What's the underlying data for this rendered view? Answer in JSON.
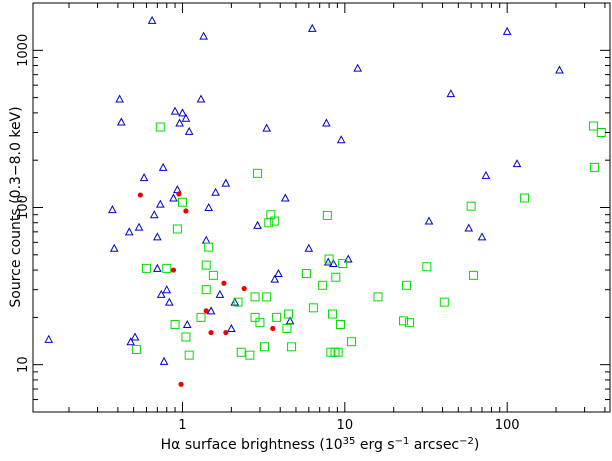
{
  "chart_data": {
    "type": "scatter",
    "title": "",
    "xlabel_parts": [
      "Hα surface brightness (10",
      "35",
      " erg s",
      "−1",
      " arcsec",
      "−2",
      ")"
    ],
    "ylabel": "Source counts (0.3−8.0 keV)",
    "xscale": "log",
    "yscale": "log",
    "xlim": [
      0.12,
      430
    ],
    "ylim": [
      5,
      2000
    ],
    "x_ticklabels": [
      {
        "value": 1,
        "label": "1"
      },
      {
        "value": 10,
        "label": "10"
      },
      {
        "value": 100,
        "label": "100"
      }
    ],
    "y_ticklabels": [
      {
        "value": 10,
        "label": "10"
      },
      {
        "value": 100,
        "label": "100"
      },
      {
        "value": 1000,
        "label": "1000"
      }
    ],
    "grid": false,
    "legend": false,
    "series": [
      {
        "marker": "triangle",
        "color": "#0000cc",
        "points": [
          [
            0.15,
            14.5
          ],
          [
            0.37,
            97
          ],
          [
            0.38,
            55
          ],
          [
            0.41,
            490
          ],
          [
            0.42,
            350
          ],
          [
            0.47,
            70
          ],
          [
            0.48,
            14
          ],
          [
            0.51,
            15
          ],
          [
            0.54,
            75
          ],
          [
            0.58,
            155
          ],
          [
            0.65,
            1550
          ],
          [
            0.67,
            90
          ],
          [
            0.7,
            41
          ],
          [
            0.7,
            65
          ],
          [
            0.73,
            105
          ],
          [
            0.74,
            28
          ],
          [
            0.76,
            180
          ],
          [
            0.77,
            10.5
          ],
          [
            0.8,
            30
          ],
          [
            0.83,
            25
          ],
          [
            0.88,
            115
          ],
          [
            0.9,
            410
          ],
          [
            0.93,
            130
          ],
          [
            0.96,
            345
          ],
          [
            1.0,
            400
          ],
          [
            1.05,
            370
          ],
          [
            1.07,
            18
          ],
          [
            1.1,
            305
          ],
          [
            1.3,
            490
          ],
          [
            1.35,
            1230
          ],
          [
            1.4,
            62
          ],
          [
            1.45,
            100
          ],
          [
            1.5,
            22
          ],
          [
            1.6,
            125
          ],
          [
            1.7,
            28
          ],
          [
            1.85,
            143
          ],
          [
            2.0,
            17
          ],
          [
            2.1,
            25
          ],
          [
            2.9,
            77
          ],
          [
            3.3,
            320
          ],
          [
            3.7,
            35
          ],
          [
            3.9,
            38
          ],
          [
            4.3,
            115
          ],
          [
            4.6,
            19
          ],
          [
            6.0,
            55
          ],
          [
            6.3,
            1380
          ],
          [
            7.7,
            345
          ],
          [
            7.9,
            45
          ],
          [
            8.5,
            44
          ],
          [
            9.5,
            270
          ],
          [
            10.5,
            47
          ],
          [
            12.0,
            770
          ],
          [
            33.0,
            82
          ],
          [
            45.0,
            530
          ],
          [
            58.0,
            74
          ],
          [
            70.0,
            65
          ],
          [
            74.0,
            160
          ],
          [
            100.0,
            1320
          ],
          [
            115.0,
            190
          ],
          [
            210.0,
            750
          ]
        ]
      },
      {
        "marker": "square",
        "color": "#00dd00",
        "points": [
          [
            0.52,
            12.5
          ],
          [
            0.6,
            41
          ],
          [
            0.73,
            325
          ],
          [
            0.8,
            41
          ],
          [
            0.9,
            18
          ],
          [
            0.93,
            73
          ],
          [
            1.0,
            108
          ],
          [
            1.05,
            15
          ],
          [
            1.1,
            11.5
          ],
          [
            1.3,
            20
          ],
          [
            1.4,
            30
          ],
          [
            1.4,
            43
          ],
          [
            1.45,
            56
          ],
          [
            1.55,
            37
          ],
          [
            2.2,
            25
          ],
          [
            2.3,
            12
          ],
          [
            2.6,
            11.5
          ],
          [
            2.8,
            20
          ],
          [
            2.8,
            27
          ],
          [
            2.9,
            165
          ],
          [
            3.0,
            18.5
          ],
          [
            3.2,
            13
          ],
          [
            3.3,
            27
          ],
          [
            3.4,
            80
          ],
          [
            3.5,
            90
          ],
          [
            3.7,
            82
          ],
          [
            3.8,
            20
          ],
          [
            4.4,
            17
          ],
          [
            4.5,
            21
          ],
          [
            4.7,
            13
          ],
          [
            5.8,
            38
          ],
          [
            6.4,
            23
          ],
          [
            7.3,
            32
          ],
          [
            7.8,
            89
          ],
          [
            8.0,
            47
          ],
          [
            8.2,
            12
          ],
          [
            8.4,
            21
          ],
          [
            8.7,
            12
          ],
          [
            8.8,
            36
          ],
          [
            9.1,
            12
          ],
          [
            9.4,
            18
          ],
          [
            9.7,
            44
          ],
          [
            11.0,
            14
          ],
          [
            16.0,
            27
          ],
          [
            23.0,
            19
          ],
          [
            24.0,
            32
          ],
          [
            25.0,
            18.5
          ],
          [
            32.0,
            42
          ],
          [
            41.0,
            25
          ],
          [
            60.0,
            102
          ],
          [
            62.0,
            37
          ],
          [
            128.0,
            115
          ],
          [
            340.0,
            330
          ],
          [
            345.0,
            180
          ],
          [
            380.0,
            300
          ]
        ]
      },
      {
        "marker": "dot",
        "color": "#ee0000",
        "points": [
          [
            0.55,
            120
          ],
          [
            0.88,
            40
          ],
          [
            0.95,
            122
          ],
          [
            1.05,
            95
          ],
          [
            0.98,
            7.5
          ],
          [
            1.4,
            22
          ],
          [
            1.5,
            16
          ],
          [
            1.8,
            33
          ],
          [
            1.85,
            16
          ],
          [
            2.4,
            30.5
          ],
          [
            3.6,
            17
          ]
        ]
      }
    ]
  }
}
